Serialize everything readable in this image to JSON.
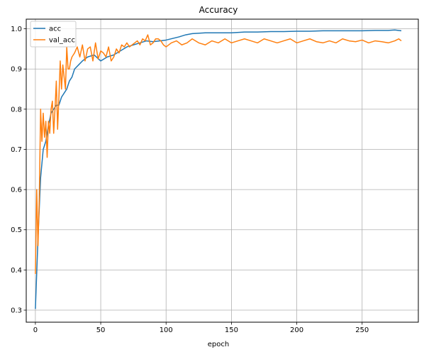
{
  "chart_data": {
    "type": "line",
    "title": "Accuracy",
    "xlabel": "epoch",
    "ylabel": "",
    "xlim": [
      -7,
      293
    ],
    "ylim": [
      0.27,
      1.024
    ],
    "xticks": [
      0,
      50,
      100,
      150,
      200,
      250
    ],
    "yticks": [
      0.3,
      0.4,
      0.5,
      0.6,
      0.7,
      0.8,
      0.9,
      1.0
    ],
    "xtick_labels": [
      "0",
      "50",
      "100",
      "150",
      "200",
      "250"
    ],
    "ytick_labels": [
      "0.3",
      "0.4",
      "0.5",
      "0.6",
      "0.7",
      "0.8",
      "0.9",
      "1.0"
    ],
    "grid": true,
    "legend": "top-left",
    "series": [
      {
        "name": "acc",
        "color": "#1f77b4",
        "x": [
          0,
          2,
          4,
          6,
          8,
          10,
          12,
          14,
          16,
          18,
          20,
          22,
          24,
          26,
          28,
          30,
          33,
          36,
          40,
          45,
          50,
          55,
          60,
          65,
          70,
          75,
          80,
          85,
          90,
          95,
          100,
          105,
          110,
          115,
          120,
          130,
          140,
          150,
          160,
          170,
          180,
          190,
          200,
          210,
          220,
          230,
          240,
          250,
          260,
          270,
          275,
          280
        ],
        "y": [
          0.303,
          0.48,
          0.63,
          0.7,
          0.72,
          0.76,
          0.79,
          0.8,
          0.81,
          0.81,
          0.83,
          0.84,
          0.85,
          0.87,
          0.88,
          0.9,
          0.91,
          0.92,
          0.93,
          0.935,
          0.92,
          0.93,
          0.935,
          0.945,
          0.955,
          0.96,
          0.965,
          0.97,
          0.968,
          0.97,
          0.972,
          0.976,
          0.98,
          0.985,
          0.988,
          0.99,
          0.99,
          0.99,
          0.992,
          0.992,
          0.993,
          0.993,
          0.994,
          0.994,
          0.995,
          0.995,
          0.995,
          0.995,
          0.996,
          0.996,
          0.997,
          0.995
        ]
      },
      {
        "name": "val_acc",
        "color": "#ff7f0e",
        "x": [
          0,
          1,
          2,
          3,
          4,
          5,
          6,
          7,
          8,
          9,
          10,
          11,
          12,
          13,
          14,
          15,
          16,
          17,
          18,
          19,
          20,
          21,
          22,
          23,
          24,
          25,
          26,
          27,
          28,
          29,
          30,
          32,
          34,
          36,
          38,
          40,
          42,
          44,
          46,
          48,
          50,
          52,
          54,
          56,
          58,
          60,
          62,
          64,
          66,
          68,
          70,
          72,
          74,
          76,
          78,
          80,
          82,
          84,
          86,
          88,
          90,
          92,
          94,
          96,
          98,
          100,
          104,
          108,
          112,
          116,
          120,
          125,
          130,
          135,
          140,
          145,
          150,
          155,
          160,
          165,
          170,
          175,
          180,
          185,
          190,
          195,
          200,
          205,
          210,
          215,
          220,
          225,
          230,
          235,
          240,
          245,
          250,
          255,
          260,
          265,
          270,
          275,
          278,
          280
        ],
        "y": [
          0.39,
          0.6,
          0.46,
          0.58,
          0.8,
          0.72,
          0.79,
          0.73,
          0.77,
          0.68,
          0.77,
          0.74,
          0.8,
          0.82,
          0.74,
          0.8,
          0.87,
          0.75,
          0.83,
          0.92,
          0.85,
          0.91,
          0.88,
          0.85,
          0.955,
          0.9,
          0.9,
          0.92,
          0.93,
          0.935,
          0.94,
          0.955,
          0.93,
          0.96,
          0.92,
          0.95,
          0.955,
          0.92,
          0.965,
          0.925,
          0.945,
          0.94,
          0.93,
          0.955,
          0.92,
          0.93,
          0.95,
          0.94,
          0.96,
          0.955,
          0.965,
          0.955,
          0.96,
          0.965,
          0.97,
          0.96,
          0.975,
          0.97,
          0.985,
          0.96,
          0.965,
          0.975,
          0.975,
          0.97,
          0.96,
          0.955,
          0.965,
          0.97,
          0.96,
          0.965,
          0.975,
          0.965,
          0.96,
          0.97,
          0.965,
          0.975,
          0.965,
          0.97,
          0.975,
          0.97,
          0.965,
          0.975,
          0.97,
          0.965,
          0.97,
          0.975,
          0.965,
          0.97,
          0.975,
          0.968,
          0.965,
          0.97,
          0.965,
          0.975,
          0.97,
          0.968,
          0.972,
          0.965,
          0.97,
          0.968,
          0.965,
          0.97,
          0.975,
          0.97
        ]
      }
    ]
  }
}
